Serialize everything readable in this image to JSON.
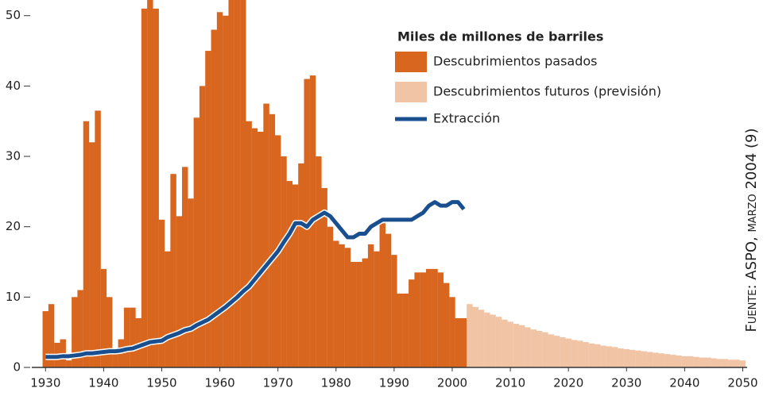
{
  "chart_data": {
    "type": "bar",
    "legend_title": "Miles de millones de barriles",
    "source": "Fuente: ASPO, marzo 2004 (9)",
    "xlim": [
      1926.5,
      2053
    ],
    "ylim": [
      0,
      52
    ],
    "xticks": [
      1930,
      1940,
      1950,
      1960,
      1970,
      1980,
      1990,
      2000,
      2010,
      2020,
      2030,
      2040,
      2050
    ],
    "yticks": [
      0,
      10,
      20,
      30,
      40,
      50
    ],
    "legend": "upper right",
    "series": [
      {
        "name": "Descubrimientos pasados",
        "type": "bar",
        "color": "#d9661f",
        "x": [
          1930,
          1931,
          1932,
          1933,
          1934,
          1935,
          1936,
          1937,
          1938,
          1939,
          1940,
          1941,
          1942,
          1943,
          1944,
          1945,
          1946,
          1947,
          1948,
          1949,
          1950,
          1951,
          1952,
          1953,
          1954,
          1955,
          1956,
          1957,
          1958,
          1959,
          1960,
          1961,
          1962,
          1963,
          1964,
          1965,
          1966,
          1967,
          1968,
          1969,
          1970,
          1971,
          1972,
          1973,
          1974,
          1975,
          1976,
          1977,
          1978,
          1979,
          1980,
          1981,
          1982,
          1983,
          1984,
          1985,
          1986,
          1987,
          1988,
          1989,
          1990,
          1991,
          1992,
          1993,
          1994,
          1995,
          1996,
          1997,
          1998,
          1999,
          2000,
          2001,
          2002
        ],
        "values": [
          8,
          9,
          3.5,
          4,
          1,
          10,
          11,
          35,
          32,
          36.5,
          14,
          10,
          2,
          4,
          8.5,
          8.5,
          7,
          51,
          55,
          51,
          21,
          16.5,
          27.5,
          21.5,
          28.5,
          24,
          35.5,
          40,
          45,
          48,
          50.5,
          50,
          53,
          55,
          55,
          35,
          34,
          33.5,
          37.5,
          36,
          33,
          30,
          26.5,
          26,
          29,
          41,
          41.5,
          30,
          25.5,
          20,
          18,
          17.5,
          17,
          15,
          15,
          15.5,
          17.5,
          16.5,
          20.5,
          19,
          16,
          10.5,
          10.5,
          12.5,
          13.5,
          13.5,
          14,
          14,
          13.5,
          12,
          10,
          7,
          7
        ]
      },
      {
        "name": "Descubrimientos futuros (previsión)",
        "type": "bar",
        "color": "#f2c4a6",
        "x": [
          2003,
          2004,
          2005,
          2006,
          2007,
          2008,
          2009,
          2010,
          2011,
          2012,
          2013,
          2014,
          2015,
          2016,
          2017,
          2018,
          2019,
          2020,
          2021,
          2022,
          2023,
          2024,
          2025,
          2026,
          2027,
          2028,
          2029,
          2030,
          2031,
          2032,
          2033,
          2034,
          2035,
          2036,
          2037,
          2038,
          2039,
          2040,
          2041,
          2042,
          2043,
          2044,
          2045,
          2046,
          2047,
          2048,
          2049,
          2050
        ],
        "values": [
          9,
          8.6,
          8.2,
          7.8,
          7.5,
          7.2,
          6.8,
          6.5,
          6.2,
          6.0,
          5.7,
          5.4,
          5.2,
          5.0,
          4.7,
          4.5,
          4.3,
          4.1,
          3.9,
          3.8,
          3.6,
          3.4,
          3.3,
          3.1,
          3.0,
          2.9,
          2.7,
          2.6,
          2.5,
          2.4,
          2.3,
          2.2,
          2.1,
          2.0,
          1.9,
          1.8,
          1.7,
          1.6,
          1.6,
          1.5,
          1.4,
          1.4,
          1.3,
          1.2,
          1.2,
          1.1,
          1.1,
          1.0
        ]
      },
      {
        "name": "Extracción",
        "type": "line",
        "color": "#1a4f8f",
        "x": [
          1930,
          1931,
          1932,
          1933,
          1934,
          1935,
          1936,
          1937,
          1938,
          1939,
          1940,
          1941,
          1942,
          1943,
          1944,
          1945,
          1946,
          1947,
          1948,
          1949,
          1950,
          1951,
          1952,
          1953,
          1954,
          1955,
          1956,
          1957,
          1958,
          1959,
          1960,
          1961,
          1962,
          1963,
          1964,
          1965,
          1966,
          1967,
          1968,
          1969,
          1970,
          1971,
          1972,
          1973,
          1974,
          1975,
          1976,
          1977,
          1978,
          1979,
          1980,
          1981,
          1982,
          1983,
          1984,
          1985,
          1986,
          1987,
          1988,
          1989,
          1990,
          1991,
          1992,
          1993,
          1994,
          1995,
          1996,
          1997,
          1998,
          1999,
          2000,
          2001,
          2002
        ],
        "values": [
          1.5,
          1.5,
          1.5,
          1.6,
          1.6,
          1.7,
          1.8,
          2.0,
          2.0,
          2.1,
          2.2,
          2.3,
          2.3,
          2.4,
          2.6,
          2.7,
          3.0,
          3.3,
          3.6,
          3.7,
          3.8,
          4.3,
          4.6,
          4.9,
          5.3,
          5.5,
          6.0,
          6.4,
          6.8,
          7.4,
          8.0,
          8.6,
          9.3,
          10.0,
          10.8,
          11.5,
          12.5,
          13.5,
          14.5,
          15.5,
          16.5,
          17.8,
          19.0,
          20.5,
          20.5,
          20.0,
          21.0,
          21.5,
          22.0,
          21.5,
          20.5,
          19.5,
          18.5,
          18.5,
          19.0,
          19.0,
          20.0,
          20.5,
          21.0,
          21.0,
          21.0,
          21.0,
          21.0,
          21.0,
          21.5,
          22.0,
          23.0,
          23.5,
          23.0,
          23.0,
          23.5,
          23.5,
          22.5
        ]
      }
    ]
  }
}
